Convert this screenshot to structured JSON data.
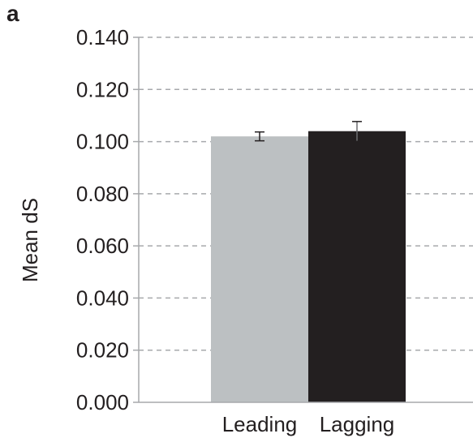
{
  "panel_label": "a",
  "chart_data": {
    "type": "bar",
    "categories": [
      "Leading",
      "Lagging"
    ],
    "values": [
      0.102,
      0.104
    ],
    "errors": [
      0.0017,
      0.0037
    ],
    "colors": [
      "#bcc0c2",
      "#231f20"
    ],
    "ylabel": "Mean dS",
    "xlabel": "",
    "ylim": [
      0,
      0.14
    ],
    "yticks": [
      "0.000",
      "0.020",
      "0.040",
      "0.060",
      "0.080",
      "0.100",
      "0.120",
      "0.140"
    ],
    "grid": true,
    "grid_style": "dashed"
  }
}
